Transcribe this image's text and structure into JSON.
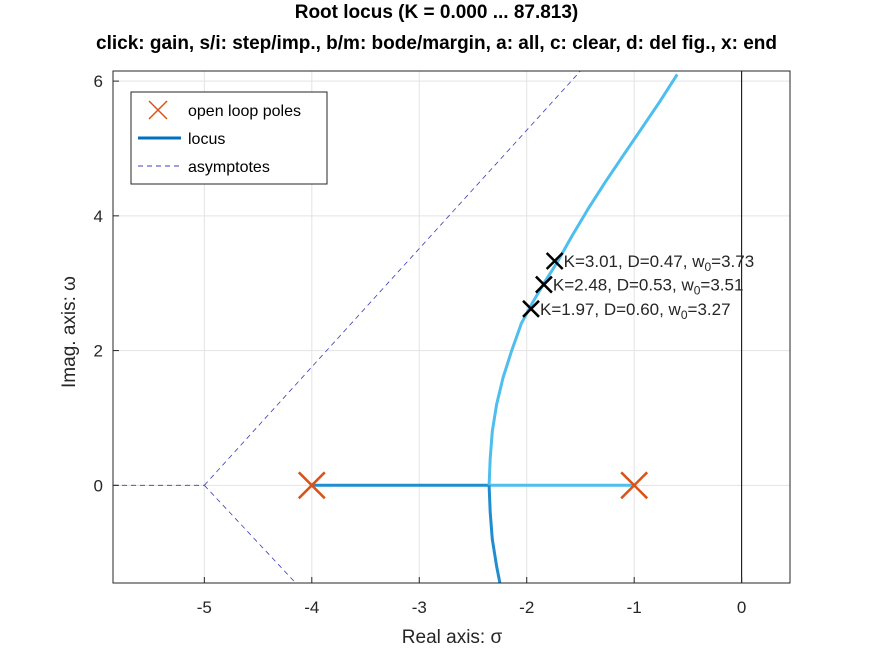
{
  "window": {
    "title": "Root locus (K = 0.000 ... 87.813)",
    "subtitle": "click: gain, s/i: step/imp., b/m: bode/margin, a: all, c: clear, d: del fig., x: end"
  },
  "chart_data": {
    "type": "line",
    "title": "Root locus (K = 0.000 ... 87.813)",
    "subtitle": "click: gain, s/i: step/imp., b/m: bode/margin, a: all, c: clear, d: del fig., x: end",
    "xlabel": "Real axis: σ",
    "ylabel": "Imag. axis: ω",
    "xlim": [
      -5.85,
      0.45
    ],
    "ylim": [
      -1.45,
      6.15
    ],
    "xticks": [
      -5,
      -4,
      -3,
      -2,
      -1,
      0
    ],
    "xtick_labels": [
      "-5",
      "-4",
      "-3",
      "-2",
      "-1",
      "0"
    ],
    "yticks": [
      0,
      2,
      4,
      6
    ],
    "ytick_labels": [
      "0",
      "2",
      "4",
      "6"
    ],
    "grid": true,
    "legend_position": "top-left",
    "legend": [
      {
        "label": "open loop poles",
        "style": "cross",
        "color": "#D95319"
      },
      {
        "label": "locus",
        "style": "line",
        "color": "#0072BD"
      },
      {
        "label": "asymptotes",
        "style": "dashed",
        "color": "#0000A0"
      }
    ],
    "open_loop_poles": [
      {
        "x": -4,
        "y": 0
      },
      {
        "x": -1,
        "y": 0
      }
    ],
    "locus_segments": [
      {
        "color": "#1f8dd0",
        "x": [
          -4,
          -2.35
        ],
        "y": [
          0,
          0
        ]
      },
      {
        "color": "#4DBEEE",
        "x": [
          -1,
          -2.35
        ],
        "y": [
          0,
          0
        ]
      },
      {
        "color": "#4DBEEE",
        "x": [
          -2.35,
          -2.34,
          -2.32,
          -2.28,
          -2.22,
          -2.14,
          -2.05,
          -1.95,
          -1.84,
          -1.72,
          -1.58,
          -1.43,
          -1.27,
          -1.1,
          -0.93,
          -0.76,
          -0.6
        ],
        "y": [
          0,
          0.4,
          0.8,
          1.2,
          1.6,
          2.0,
          2.4,
          2.7,
          3.0,
          3.3,
          3.7,
          4.1,
          4.5,
          4.9,
          5.3,
          5.7,
          6.1
        ]
      },
      {
        "color": "#1f8dd0",
        "x": [
          -2.35,
          -2.34,
          -2.32,
          -2.28,
          -2.25
        ],
        "y": [
          0,
          -0.4,
          -0.8,
          -1.2,
          -1.45
        ]
      }
    ],
    "asymptotes": [
      {
        "x": [
          -5.85,
          -5
        ],
        "y": [
          0,
          0
        ]
      },
      {
        "x": [
          -5,
          -1.5
        ],
        "y": [
          0,
          6.15
        ]
      },
      {
        "x": [
          -5,
          -4.15
        ],
        "y": [
          0,
          -1.45
        ]
      }
    ],
    "gain_markers": [
      {
        "x": -1.74,
        "y": 3.33,
        "label_main": "K=3.01, D=0.47, w",
        "label_sub": "0",
        "label_tail": "=3.73"
      },
      {
        "x": -1.84,
        "y": 2.98,
        "label_main": "K=2.48, D=0.53, w",
        "label_sub": "0",
        "label_tail": "=3.51"
      },
      {
        "x": -1.96,
        "y": 2.62,
        "label_main": "K=1.97, D=0.60, w",
        "label_sub": "0",
        "label_tail": "=3.27"
      }
    ]
  }
}
